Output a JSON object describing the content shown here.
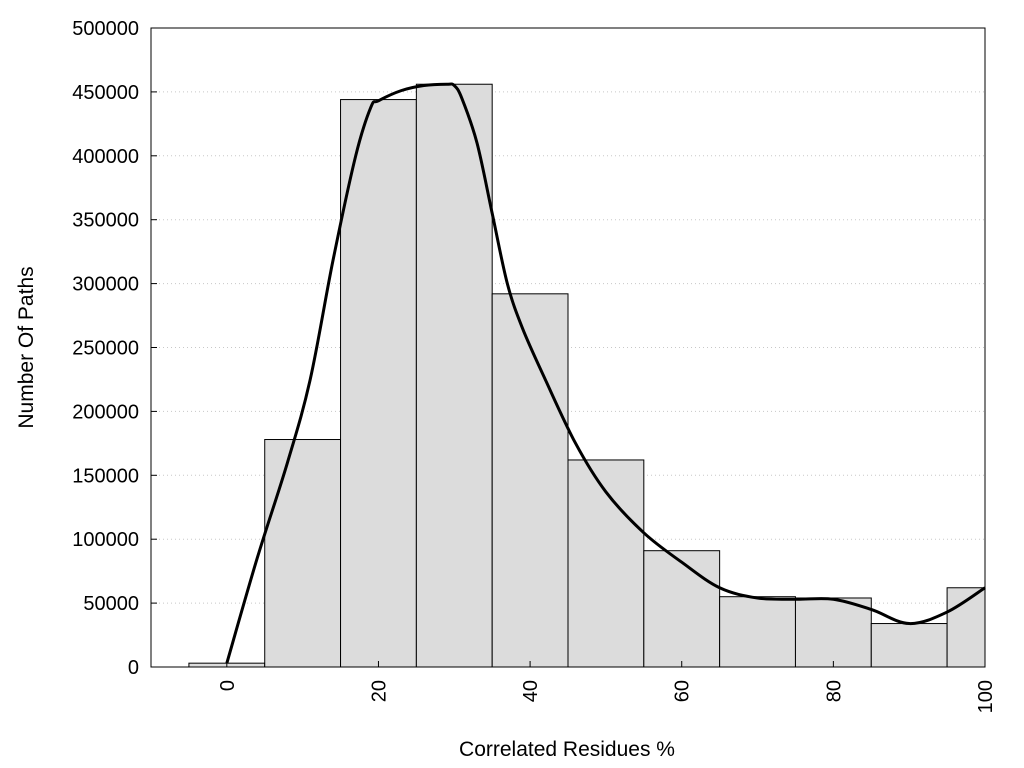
{
  "chart_data": {
    "type": "bar",
    "xlabel": "Correlated Residues %",
    "ylabel": "Number Of Paths",
    "xlim": [
      -10,
      100
    ],
    "ylim": [
      0,
      500000
    ],
    "grid": "horizontal dotted",
    "x_ticks": [
      0,
      20,
      40,
      60,
      80,
      100
    ],
    "y_ticks": [
      0,
      50000,
      100000,
      150000,
      200000,
      250000,
      300000,
      350000,
      400000,
      450000,
      500000
    ],
    "bin_width": 10,
    "x": [
      0,
      10,
      20,
      30,
      40,
      50,
      60,
      70,
      80,
      90,
      100
    ],
    "values": [
      3000,
      178000,
      444000,
      456000,
      292000,
      162000,
      91000,
      55000,
      54000,
      34000,
      62000
    ],
    "colors": {
      "bar_fill": "#dcdcdc",
      "bar_stroke": "#000000",
      "curve": "#000000",
      "grid": "#c8c8c8"
    },
    "curve": {
      "x": [
        0,
        4,
        8,
        11,
        14,
        17,
        19,
        20,
        23,
        26,
        29,
        30,
        31,
        33,
        35,
        37,
        39,
        42,
        46,
        50,
        55,
        60,
        65,
        70,
        75,
        80,
        85,
        90,
        95,
        100
      ],
      "y": [
        3000,
        85000,
        160000,
        225000,
        318000,
        400000,
        438000,
        443000,
        451000,
        455000,
        456000,
        455000,
        445000,
        410000,
        355000,
        300000,
        265000,
        225000,
        175000,
        137000,
        105000,
        82000,
        62000,
        54000,
        53000,
        53000,
        45000,
        34000,
        43000,
        62000
      ]
    }
  }
}
